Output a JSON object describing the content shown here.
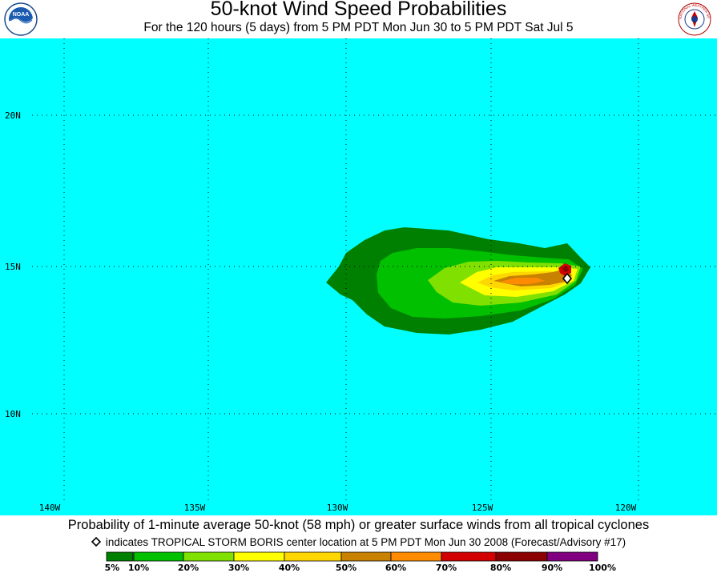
{
  "title": "50-knot Wind Speed Probabilities",
  "subtitle": "For the 120 hours (5 days) from 5 PM PDT Mon Jun 30 to 5 PM PDT Sat Jul 5",
  "logos": {
    "left_text": "NOAA",
    "right_text": "NATIONAL WEATHER SERVICE"
  },
  "map": {
    "ocean_color": "#00ffff",
    "gridline_color": "#000000",
    "lon_labels": [
      "140W",
      "135W",
      "130W",
      "125W",
      "120W"
    ],
    "lat_labels": [
      "20N",
      "15N",
      "10N"
    ],
    "storm_center": {
      "lat": 14.6,
      "lon": "121.8W"
    }
  },
  "caption": "Probability of 1-minute average 50-knot (58 mph) or greater surface winds from all tropical cyclones",
  "note": "indicates TROPICAL STORM BORIS center location at 5 PM PDT Mon Jun 30 2008 (Forecast/Advisory #17)",
  "legend": {
    "labels": [
      "5%",
      "10%",
      "20%",
      "30%",
      "40%",
      "50%",
      "60%",
      "70%",
      "80%",
      "90%",
      "100%"
    ],
    "colors": [
      "#008000",
      "#00c000",
      "#80e000",
      "#ffff00",
      "#ffd700",
      "#c88200",
      "#ff8c00",
      "#d20000",
      "#8b0000",
      "#800080"
    ]
  }
}
